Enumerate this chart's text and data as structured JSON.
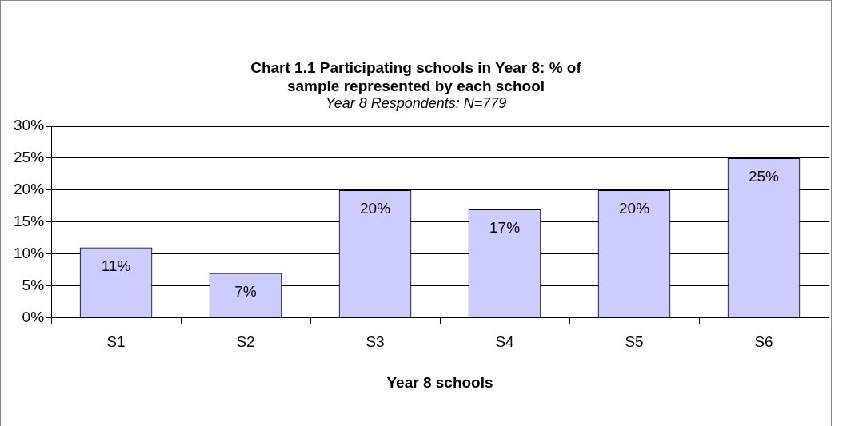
{
  "chart_data": {
    "type": "bar",
    "title": "Chart 1.1 Participating schools in Year 8: % of sample represented by each school",
    "subtitle": "Year 8 Respondents: N=779",
    "xlabel": "Year 8 schools",
    "categories": [
      "S1",
      "S2",
      "S3",
      "S4",
      "S5",
      "S6"
    ],
    "values": [
      11,
      7,
      20,
      17,
      20,
      25
    ],
    "color": "#ccccff",
    "value_labels": [
      "11%",
      "7%",
      "20%",
      "17%",
      "20%",
      "25%"
    ],
    "ylim": [
      0,
      30
    ],
    "yticks": [
      {
        "value": 0,
        "label": "0%"
      },
      {
        "value": 5,
        "label": "5%"
      },
      {
        "value": 10,
        "label": "10%"
      },
      {
        "value": 15,
        "label": "15%"
      },
      {
        "value": 20,
        "label": "20%"
      },
      {
        "value": 25,
        "label": "25%"
      },
      {
        "value": 30,
        "label": "30%"
      }
    ],
    "grid": "y",
    "legend": false
  }
}
